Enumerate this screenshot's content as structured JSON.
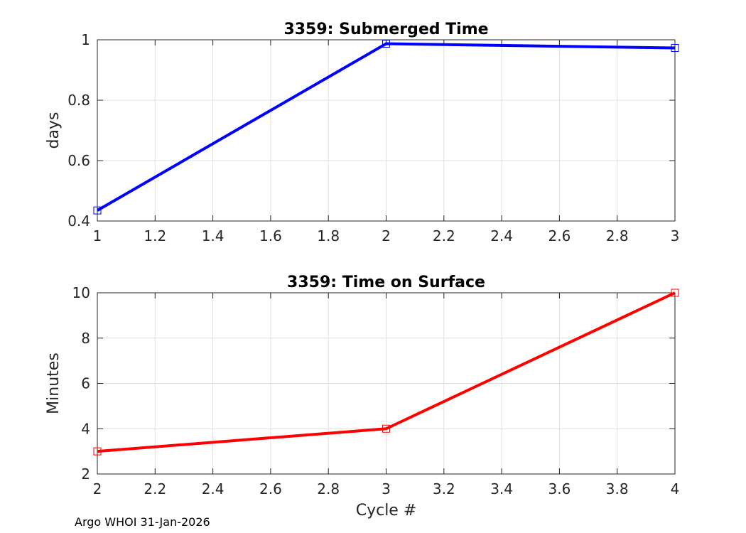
{
  "chart_data": [
    {
      "type": "line",
      "title": "3359: Submerged Time",
      "xlabel": "",
      "ylabel": "days",
      "xlim": [
        1,
        3
      ],
      "ylim": [
        0.4,
        1
      ],
      "xticks": [
        1,
        1.2,
        1.4,
        1.6,
        1.8,
        2,
        2.2,
        2.4,
        2.6,
        2.8,
        3
      ],
      "yticks": [
        0.4,
        0.6,
        0.8,
        1
      ],
      "xticklabels": [
        "1",
        "1.2",
        "1.4",
        "1.6",
        "1.8",
        "2",
        "2.2",
        "2.4",
        "2.6",
        "2.8",
        "3"
      ],
      "yticklabels": [
        "0.4",
        "0.6",
        "0.8",
        "1"
      ],
      "grid": true,
      "series": [
        {
          "color": "#0000ff",
          "marker": "square",
          "x": [
            1,
            2,
            3
          ],
          "y": [
            0.435,
            0.987,
            0.973
          ]
        }
      ]
    },
    {
      "type": "line",
      "title": "3359: Time on Surface",
      "xlabel": "Cycle #",
      "ylabel": "Minutes",
      "xlim": [
        2,
        4
      ],
      "ylim": [
        2,
        10
      ],
      "xticks": [
        2,
        2.2,
        2.4,
        2.6,
        2.8,
        3,
        3.2,
        3.4,
        3.6,
        3.8,
        4
      ],
      "yticks": [
        2,
        4,
        6,
        8,
        10
      ],
      "xticklabels": [
        "2",
        "2.2",
        "2.4",
        "2.6",
        "2.8",
        "3",
        "3.2",
        "3.4",
        "3.6",
        "3.8",
        "4"
      ],
      "yticklabels": [
        "2",
        "4",
        "6",
        "8",
        "10"
      ],
      "grid": true,
      "series": [
        {
          "color": "#ff0000",
          "marker": "square",
          "x": [
            2,
            3,
            4
          ],
          "y": [
            3,
            4,
            10
          ]
        }
      ]
    }
  ],
  "footer": "Argo WHOI 31-Jan-2026"
}
